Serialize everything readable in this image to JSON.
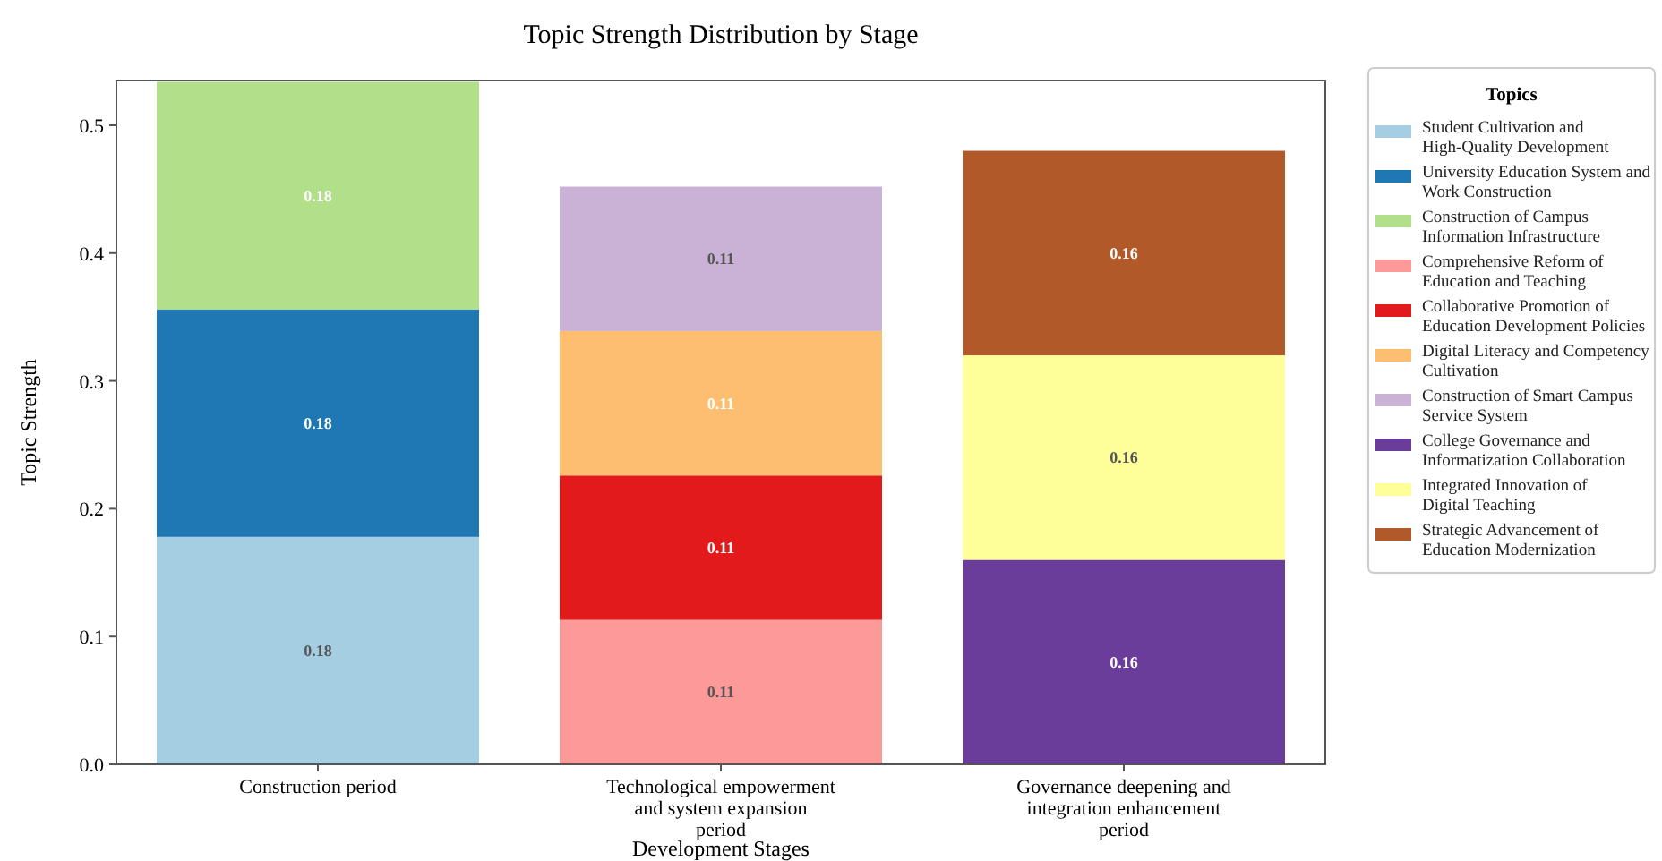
{
  "chart_data": {
    "type": "bar",
    "title": "Topic Strength Distribution by Stage",
    "xlabel": "Development Stages",
    "ylabel": "Topic Strength",
    "legend_title": "Topics",
    "legend": "right",
    "stacked": true,
    "grid": false,
    "categories": [
      "Construction period",
      "Technological empowerment and system expansion period",
      "Governance deepening and integration enhancement period"
    ],
    "ylim": [
      0,
      0.535
    ],
    "yticks": [
      {
        "value": 0,
        "label": "0.0"
      },
      0.1,
      0.2,
      0.3,
      0.4,
      0.5
    ],
    "series": [
      {
        "name": "Student Cultivation and High-Quality Development",
        "color": "#a6cee3",
        "values": [
          0.178,
          null,
          null
        ],
        "value_labels": [
          "0.18",
          null,
          null
        ]
      },
      {
        "name": "University Education System and Work Construction",
        "color": "#1f78b4",
        "values": [
          0.178,
          null,
          null
        ],
        "value_labels": [
          "0.18",
          null,
          null
        ]
      },
      {
        "name": "Construction of Campus Information Infrastructure",
        "color": "#b2df8a",
        "values": [
          0.178,
          null,
          null
        ],
        "value_labels": [
          "0.18",
          null,
          null
        ]
      },
      {
        "name": "Comprehensive Reform of Education and Teaching",
        "color": "#fb9a99",
        "values": [
          null,
          0.113,
          null
        ],
        "value_labels": [
          null,
          "0.11",
          null
        ]
      },
      {
        "name": "Collaborative Promotion of Education Development Policies",
        "color": "#e31a1c",
        "values": [
          null,
          0.113,
          null
        ],
        "value_labels": [
          null,
          "0.11",
          null
        ]
      },
      {
        "name": "Digital Literacy and Competency Cultivation",
        "color": "#fdbf6f",
        "values": [
          null,
          0.113,
          null
        ],
        "value_labels": [
          null,
          "0.11",
          null
        ]
      },
      {
        "name": "Construction of Smart Campus Service System",
        "color": "#cab2d6",
        "values": [
          null,
          0.113,
          null
        ],
        "value_labels": [
          null,
          "0.11",
          null
        ]
      },
      {
        "name": "College Governance and Informatization Collaboration",
        "color": "#6a3d9a",
        "values": [
          null,
          null,
          0.16
        ],
        "value_labels": [
          null,
          null,
          "0.16"
        ]
      },
      {
        "name": "Integrated Innovation of Digital Teaching",
        "color": "#ffff99",
        "values": [
          null,
          null,
          0.16
        ],
        "value_labels": [
          null,
          null,
          "0.16"
        ]
      },
      {
        "name": "Strategic Advancement of Education Modernization",
        "color": "#b15928",
        "values": [
          null,
          null,
          0.16
        ],
        "value_labels": [
          null,
          null,
          "0.16"
        ]
      }
    ]
  }
}
